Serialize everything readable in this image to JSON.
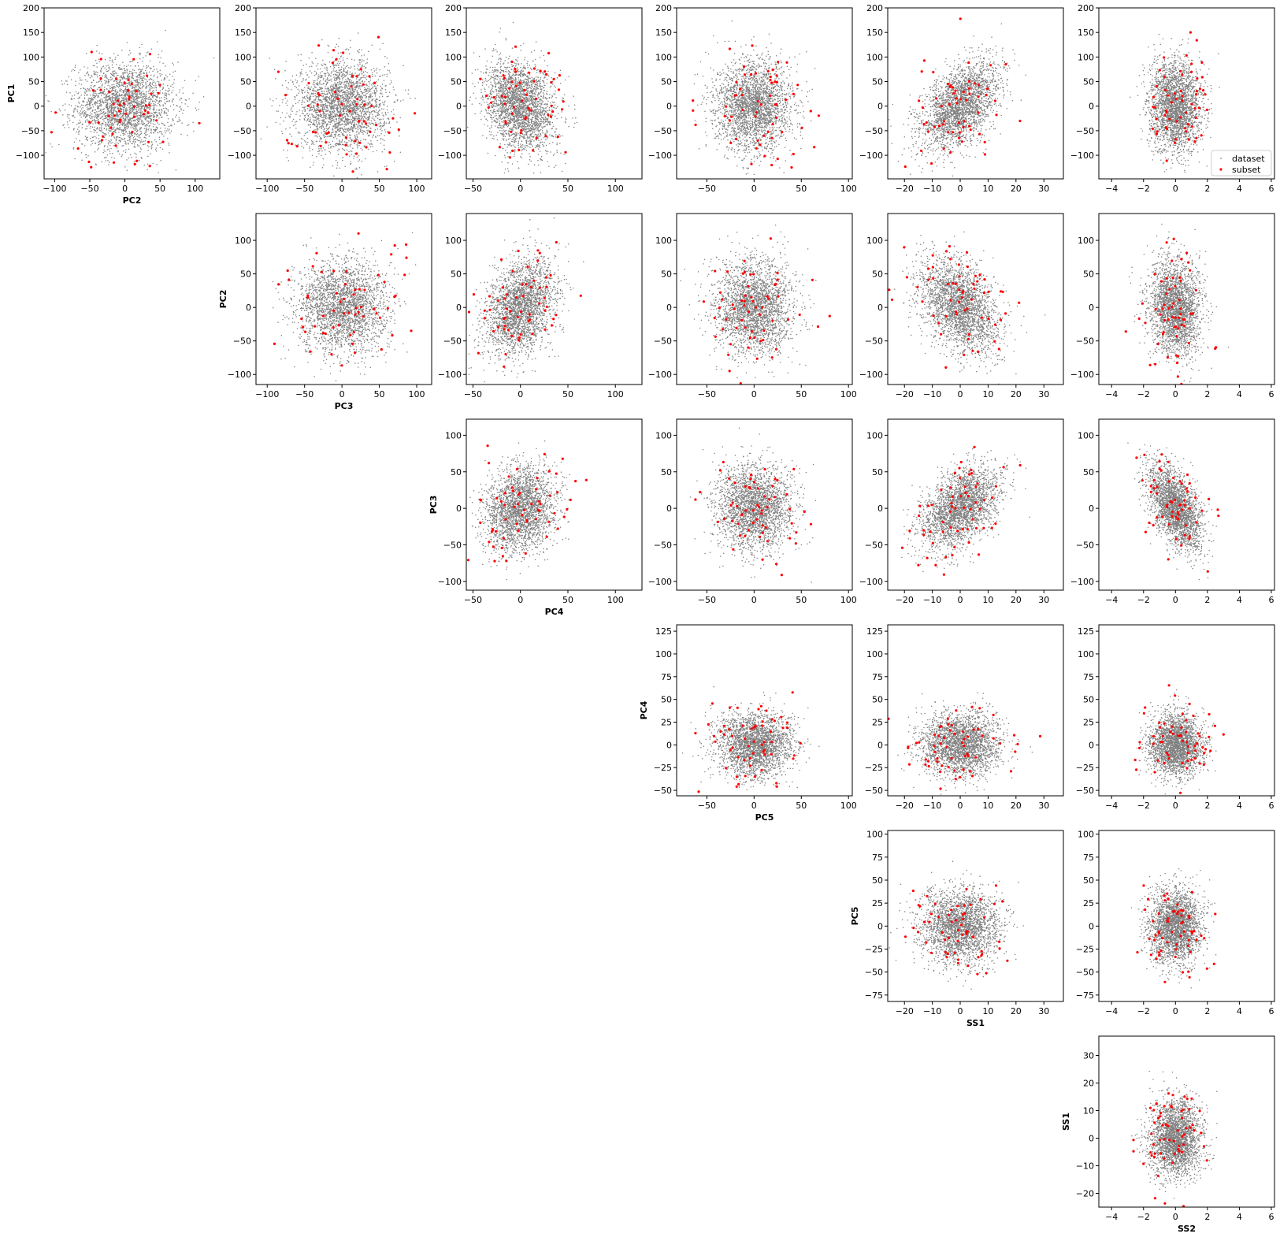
{
  "colors": {
    "dataset": "#808080",
    "subset": "#ff0000",
    "background": "#ffffff",
    "axes": "#000000"
  },
  "legend": {
    "location": "lower-right of top-right panel",
    "entries": [
      {
        "label": "dataset",
        "color": "#808080",
        "marker": "small-dot"
      },
      {
        "label": "subset",
        "color": "#ff0000",
        "marker": "dot"
      }
    ]
  },
  "chart_data": {
    "type": "scatter",
    "layout": "upper-triangular pair-plot (6 rows x 6 columns)",
    "series": [
      {
        "name": "dataset",
        "color": "#808080",
        "approx_points_per_panel": 5000,
        "note": "dense Gaussian-like cloud"
      },
      {
        "name": "subset",
        "color": "#ff0000",
        "approx_points_per_panel": 60
      }
    ],
    "variables": {
      "x": [
        "PC2",
        "PC3",
        "PC4",
        "PC5",
        "SS1",
        "SS2"
      ],
      "y": [
        "PC1",
        "PC2",
        "PC3",
        "PC4",
        "PC5",
        "SS1"
      ]
    },
    "x_axes": {
      "PC2": {
        "range": [
          -115,
          135
        ],
        "ticks": [
          -100,
          -50,
          0,
          50,
          100
        ],
        "spread": 35
      },
      "PC3": {
        "range": [
          -115,
          120
        ],
        "ticks": [
          -100,
          -50,
          0,
          50,
          100
        ],
        "spread": 30
      },
      "PC4": {
        "range": [
          -57,
          128
        ],
        "ticks": [
          -50,
          0,
          50,
          100
        ],
        "spread": 18
      },
      "PC5": {
        "range": [
          -82,
          104
        ],
        "ticks": [
          -50,
          0,
          50,
          100
        ],
        "spread": 20
      },
      "SS1": {
        "range": [
          -26,
          37
        ],
        "ticks": [
          -20,
          -10,
          0,
          10,
          20,
          30
        ],
        "spread": 7
      },
      "SS2": {
        "range": [
          -4.8,
          6.2
        ],
        "ticks": [
          -4,
          -2,
          0,
          2,
          4,
          6
        ],
        "spread": 0.8
      }
    },
    "y_axes": {
      "PC1": {
        "range": [
          -148,
          200
        ],
        "ticks": [
          -100,
          -50,
          0,
          50,
          100,
          150,
          200
        ],
        "spread": 45
      },
      "PC2": {
        "range": [
          -115,
          140
        ],
        "ticks": [
          -100,
          -50,
          0,
          50,
          100
        ],
        "spread": 35
      },
      "PC3": {
        "range": [
          -112,
          122
        ],
        "ticks": [
          -100,
          -50,
          0,
          50,
          100
        ],
        "spread": 28
      },
      "PC4": {
        "range": [
          -56,
          132
        ],
        "ticks": [
          -50,
          -25,
          0,
          25,
          50,
          75,
          100,
          125
        ],
        "spread": 17
      },
      "PC5": {
        "range": [
          -82,
          104
        ],
        "ticks": [
          -75,
          -50,
          -25,
          0,
          25,
          50,
          75,
          100
        ],
        "spread": 20
      },
      "SS1": {
        "range": [
          -25,
          37
        ],
        "ticks": [
          -20,
          -10,
          0,
          10,
          20,
          30
        ],
        "spread": 7
      }
    },
    "panels": [
      {
        "row": 0,
        "col": 0,
        "x": "PC2",
        "y": "PC1",
        "correlation": 0,
        "xlabel": "PC2",
        "ylabel": "PC1"
      },
      {
        "row": 0,
        "col": 1,
        "x": "PC3",
        "y": "PC1",
        "correlation": 0
      },
      {
        "row": 0,
        "col": 2,
        "x": "PC4",
        "y": "PC1",
        "correlation": -0.2
      },
      {
        "row": 0,
        "col": 3,
        "x": "PC5",
        "y": "PC1",
        "correlation": 0
      },
      {
        "row": 0,
        "col": 4,
        "x": "SS1",
        "y": "PC1",
        "correlation": 0.5
      },
      {
        "row": 0,
        "col": 5,
        "x": "SS2",
        "y": "PC1",
        "correlation": 0,
        "legend": true
      },
      {
        "row": 1,
        "col": 1,
        "x": "PC3",
        "y": "PC2",
        "correlation": 0,
        "xlabel": "PC3",
        "ylabel": "PC2"
      },
      {
        "row": 1,
        "col": 2,
        "x": "PC4",
        "y": "PC2",
        "correlation": 0.3
      },
      {
        "row": 1,
        "col": 3,
        "x": "PC5",
        "y": "PC2",
        "correlation": 0
      },
      {
        "row": 1,
        "col": 4,
        "x": "SS1",
        "y": "PC2",
        "correlation": -0.4
      },
      {
        "row": 1,
        "col": 5,
        "x": "SS2",
        "y": "PC2",
        "correlation": -0.1
      },
      {
        "row": 2,
        "col": 2,
        "x": "PC4",
        "y": "PC3",
        "correlation": 0.15,
        "xlabel": "PC4",
        "ylabel": "PC3"
      },
      {
        "row": 2,
        "col": 3,
        "x": "PC5",
        "y": "PC3",
        "correlation": 0
      },
      {
        "row": 2,
        "col": 4,
        "x": "SS1",
        "y": "PC3",
        "correlation": 0.45
      },
      {
        "row": 2,
        "col": 5,
        "x": "SS2",
        "y": "PC3",
        "correlation": -0.5
      },
      {
        "row": 3,
        "col": 3,
        "x": "PC5",
        "y": "PC4",
        "correlation": 0,
        "xlabel": "PC5",
        "ylabel": "PC4"
      },
      {
        "row": 3,
        "col": 4,
        "x": "SS1",
        "y": "PC4",
        "correlation": 0
      },
      {
        "row": 3,
        "col": 5,
        "x": "SS2",
        "y": "PC4",
        "correlation": 0
      },
      {
        "row": 4,
        "col": 4,
        "x": "SS1",
        "y": "PC5",
        "correlation": 0,
        "xlabel": "SS1",
        "ylabel": "PC5"
      },
      {
        "row": 4,
        "col": 5,
        "x": "SS2",
        "y": "PC5",
        "correlation": 0
      },
      {
        "row": 5,
        "col": 5,
        "x": "SS2",
        "y": "SS1",
        "correlation": 0,
        "xlabel": "SS2",
        "ylabel": "SS1"
      }
    ],
    "grid": false
  }
}
